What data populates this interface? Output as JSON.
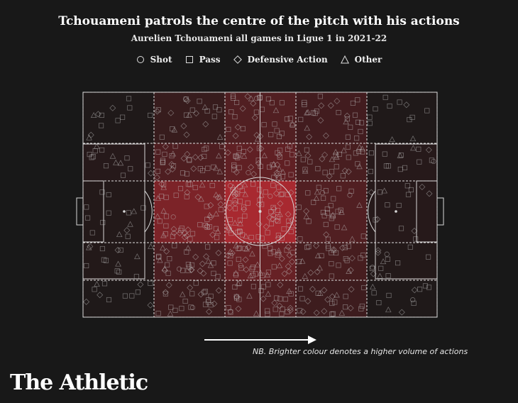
{
  "title": "Tchouameni patrols the centre of the pitch with his actions",
  "subtitle": "Aurelien Tchouameni all games in Ligue 1 in 2021-22",
  "legend": [
    {
      "label": "Shot",
      "marker": "circle"
    },
    {
      "label": "Pass",
      "marker": "square"
    },
    {
      "label": "Defensive Action",
      "marker": "diamond"
    },
    {
      "label": "Other",
      "marker": "triangle"
    }
  ],
  "note": "NB. Brighter colour denotes a higher volume of actions",
  "brand": "The Athletic",
  "colors": {
    "background": "#181818",
    "heat": "#e0303a",
    "marker": "#bfbfbf",
    "lines": "#e6e6e6"
  },
  "chart_data": {
    "type": "heatmap",
    "direction": "left-to-right",
    "columns": 5,
    "rows": 5,
    "intensity": [
      [
        0.05,
        0.22,
        0.4,
        0.3,
        0.05
      ],
      [
        0.1,
        0.38,
        0.5,
        0.34,
        0.1
      ],
      [
        0.08,
        0.7,
        1.0,
        0.4,
        0.1
      ],
      [
        0.08,
        0.35,
        0.55,
        0.32,
        0.08
      ],
      [
        0.05,
        0.25,
        0.38,
        0.26,
        0.05
      ]
    ]
  }
}
